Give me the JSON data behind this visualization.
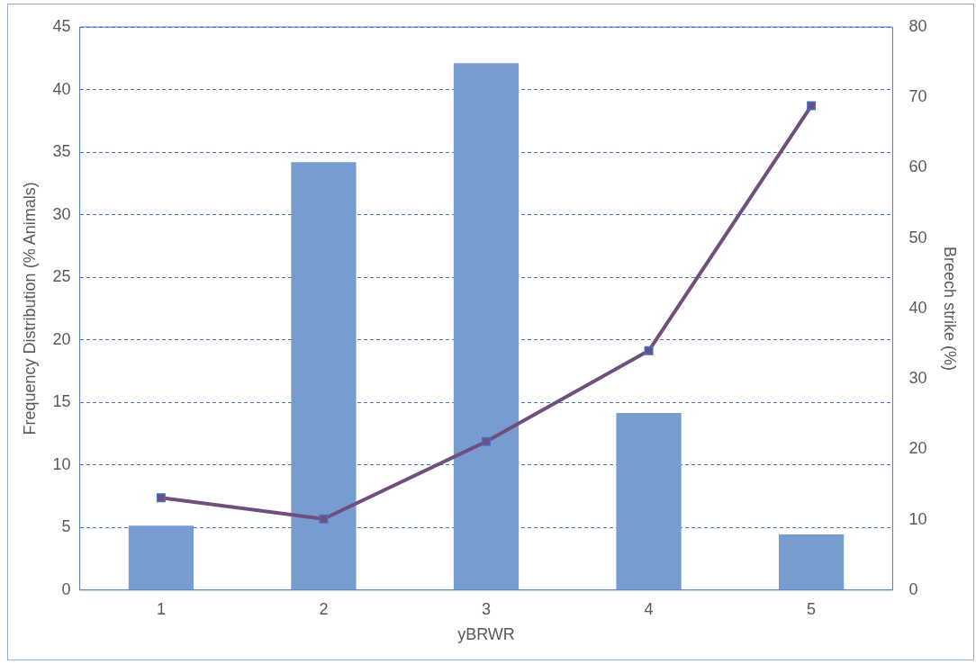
{
  "chart_data": {
    "type": "bar",
    "xlabel": "yBRWR",
    "ylabel": "Frequency Distribution (% Animals)",
    "y2label": "Breech strike (%)",
    "categories": [
      "1",
      "2",
      "3",
      "4",
      "5"
    ],
    "series": [
      {
        "color": "#779ccf",
        "values": [
          5.15,
          34.2,
          42.1,
          14.15,
          4.45
        ]
      },
      {
        "type": "line",
        "axis": "y2",
        "color": "#6e4f7e",
        "marker": "square",
        "values": [
          13.1,
          10.1,
          21.1,
          34.0,
          68.8
        ]
      }
    ],
    "ylim": [
      0,
      45
    ],
    "yticks": [
      0,
      5,
      10,
      15,
      20,
      25,
      30,
      35,
      40,
      45
    ],
    "y2lim": [
      0,
      80
    ],
    "y2ticks": [
      0,
      10,
      20,
      30,
      40,
      50,
      60,
      70,
      80
    ],
    "grid": "y",
    "legend": false
  }
}
